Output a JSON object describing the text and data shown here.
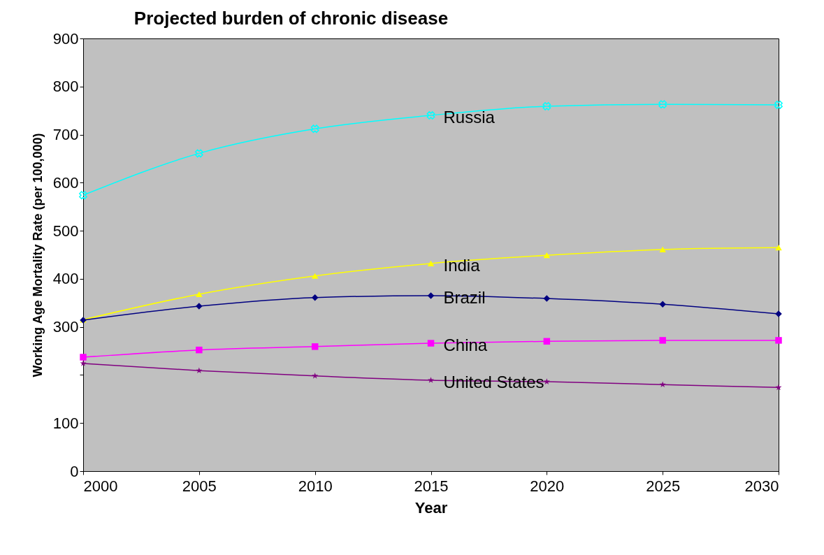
{
  "chart_data": {
    "type": "line",
    "title": "Projected burden of chronic disease",
    "xlabel": "Year",
    "ylabel": "Working Age Mortality Rate (per 100,000)",
    "x": [
      2000,
      2005,
      2010,
      2015,
      2020,
      2025,
      2030
    ],
    "series": [
      {
        "name": "Russia",
        "color": "#00ffff",
        "marker": "cross",
        "values": [
          574,
          661,
          712,
          740,
          759,
          763,
          762
        ]
      },
      {
        "name": "India",
        "color": "#ffff00",
        "marker": "triangle",
        "values": [
          315,
          368,
          406,
          432,
          449,
          461,
          465
        ]
      },
      {
        "name": "Brazil",
        "color": "#000080",
        "marker": "diamond",
        "values": [
          314,
          343,
          361,
          365,
          359,
          347,
          327
        ]
      },
      {
        "name": "China",
        "color": "#ff00ff",
        "marker": "square",
        "values": [
          237,
          252,
          259,
          266,
          270,
          272,
          272
        ]
      },
      {
        "name": "United States",
        "color": "#800080",
        "marker": "star",
        "values": [
          224,
          209,
          198,
          189,
          186,
          180,
          174
        ]
      }
    ],
    "xlim": [
      2000,
      2030
    ],
    "xticks": [
      2000,
      2005,
      2010,
      2015,
      2020,
      2025,
      2030
    ],
    "ylim": [
      0,
      900
    ],
    "yticks": [
      0,
      100,
      {
        "value": 200,
        "label": null
      },
      300,
      400,
      500,
      600,
      700,
      800,
      900
    ],
    "grid": false,
    "legend": false,
    "line_style": "solid"
  }
}
